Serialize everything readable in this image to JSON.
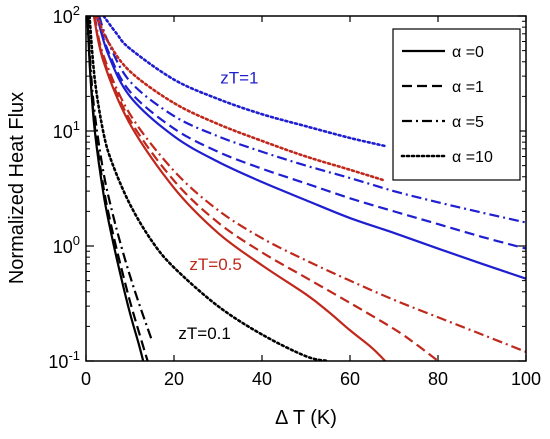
{
  "chart_data": {
    "type": "line",
    "title": "",
    "xlabel": "Δ T (K)",
    "ylabel": "Normalized Heat Flux",
    "xscale": "linear",
    "yscale": "log",
    "xlim": [
      0,
      100
    ],
    "ylim": [
      0.1,
      100
    ],
    "grid": false,
    "legend_position": "top-right",
    "x_ticks": [
      {
        "v": 0,
        "label": "0"
      },
      {
        "v": 20,
        "label": "20"
      },
      {
        "v": 40,
        "label": "40"
      },
      {
        "v": 60,
        "label": "60"
      },
      {
        "v": 80,
        "label": "80"
      },
      {
        "v": 100,
        "label": "100"
      }
    ],
    "y_ticks": [
      {
        "v": 0.1,
        "base": "10",
        "exp": "-1"
      },
      {
        "v": 1,
        "base": "10",
        "exp": "0"
      },
      {
        "v": 10,
        "base": "10",
        "exp": "1"
      },
      {
        "v": 100,
        "base": "10",
        "exp": "2"
      }
    ],
    "legend": [
      {
        "label": "α =0",
        "dash": "solid"
      },
      {
        "label": "α =1",
        "dash": "dashed"
      },
      {
        "label": "α =5",
        "dash": "dashdot"
      },
      {
        "label": "α =10",
        "dash": "dotted"
      }
    ],
    "annotations": [
      {
        "text": "zT=1",
        "color": "#1f1fd1",
        "x": 30.5,
        "y": 26
      },
      {
        "text": "zT=0.5",
        "color": "#c0281c",
        "x": 23.5,
        "y": 0.62
      },
      {
        "text": "zT=0.1",
        "color": "#000000",
        "x": 21,
        "y": 0.155
      }
    ],
    "colors": {
      "zT=1": "#1f1fd1",
      "zT=0.5": "#c0281c",
      "zT=0.1": "#000000"
    },
    "series": [
      {
        "group": "zT=1",
        "alpha": "0",
        "dash": "solid",
        "color": "#1f1fd1",
        "x": [
          2.5,
          5,
          10,
          20,
          30,
          40,
          50,
          60,
          70,
          80,
          90,
          100
        ],
        "y": [
          100,
          47,
          20,
          9,
          5.4,
          3.6,
          2.5,
          1.75,
          1.3,
          0.95,
          0.7,
          0.52
        ]
      },
      {
        "group": "zT=1",
        "alpha": "1",
        "dash": "dashed",
        "color": "#1f1fd1",
        "x": [
          2.5,
          5,
          10,
          20,
          30,
          40,
          50,
          60,
          70,
          80,
          90,
          100
        ],
        "y": [
          100,
          50,
          22,
          10.5,
          6.6,
          4.7,
          3.5,
          2.6,
          2,
          1.55,
          1.2,
          0.95
        ]
      },
      {
        "group": "zT=1",
        "alpha": "5",
        "dash": "dashdot",
        "color": "#1f1fd1",
        "x": [
          3,
          5,
          10,
          20,
          30,
          40,
          50,
          60,
          70,
          80,
          90,
          100
        ],
        "y": [
          100,
          60,
          27,
          13.5,
          9,
          6.6,
          5,
          3.9,
          3,
          2.4,
          1.95,
          1.6
        ]
      },
      {
        "group": "zT=1",
        "alpha": "10",
        "dash": "dotted",
        "color": "#1f1fd1",
        "x": [
          4,
          7,
          10,
          20,
          30,
          40,
          50,
          60,
          68
        ],
        "y": [
          100,
          70,
          52,
          28,
          19,
          14,
          11,
          8.7,
          7.4
        ]
      },
      {
        "group": "zT=0.5",
        "alpha": "0",
        "dash": "solid",
        "color": "#c0281c",
        "x": [
          1.8,
          4,
          10,
          20,
          30,
          40,
          50,
          55,
          60,
          65,
          68
        ],
        "y": [
          100,
          40,
          11.5,
          3.2,
          1.3,
          0.68,
          0.38,
          0.27,
          0.185,
          0.13,
          0.1
        ]
      },
      {
        "group": "zT=0.5",
        "alpha": "1",
        "dash": "dashed",
        "color": "#c0281c",
        "x": [
          1.8,
          4,
          10,
          20,
          30,
          40,
          50,
          60,
          70,
          75,
          80
        ],
        "y": [
          100,
          42,
          12.5,
          3.7,
          1.6,
          0.88,
          0.53,
          0.32,
          0.19,
          0.14,
          0.1
        ]
      },
      {
        "group": "zT=0.5",
        "alpha": "5",
        "dash": "dashdot",
        "color": "#c0281c",
        "x": [
          2,
          4,
          10,
          20,
          30,
          40,
          50,
          60,
          70,
          80,
          90,
          100
        ],
        "y": [
          100,
          45,
          14,
          4.5,
          2.05,
          1.17,
          0.75,
          0.5,
          0.34,
          0.24,
          0.17,
          0.12
        ]
      },
      {
        "group": "zT=0.5",
        "alpha": "10",
        "dash": "dotted",
        "color": "#c0281c",
        "x": [
          2.5,
          5,
          10,
          20,
          30,
          40,
          50,
          60,
          68
        ],
        "y": [
          100,
          60,
          33,
          17.5,
          11.5,
          8.2,
          6,
          4.6,
          3.7
        ]
      },
      {
        "group": "zT=0.1",
        "alpha": "0",
        "dash": "solid",
        "color": "#000000",
        "x": [
          0.3,
          1,
          2,
          4,
          6,
          8,
          10,
          12,
          13
        ],
        "y": [
          100,
          30,
          10,
          2.8,
          1.15,
          0.53,
          0.26,
          0.14,
          0.1
        ]
      },
      {
        "group": "zT=0.1",
        "alpha": "1",
        "dash": "dashed",
        "color": "#000000",
        "x": [
          0.4,
          1,
          2,
          4,
          6,
          8,
          10,
          12,
          14
        ],
        "y": [
          100,
          32,
          11,
          3.2,
          1.35,
          0.65,
          0.33,
          0.18,
          0.1
        ]
      },
      {
        "group": "zT=0.1",
        "alpha": "5",
        "dash": "dashdot",
        "color": "#000000",
        "x": [
          0.5,
          1,
          2,
          4,
          6,
          8,
          10,
          12,
          15
        ],
        "y": [
          100,
          38,
          14,
          4.3,
          1.95,
          1.0,
          0.55,
          0.32,
          0.15
        ]
      },
      {
        "group": "zT=0.1",
        "alpha": "10",
        "dash": "dotted",
        "color": "#000000",
        "x": [
          0.8,
          2,
          4,
          6,
          10,
          15,
          20,
          30,
          40,
          50,
          55
        ],
        "y": [
          100,
          28,
          9.5,
          5.2,
          2.3,
          1.1,
          0.65,
          0.3,
          0.17,
          0.11,
          0.1
        ]
      }
    ]
  }
}
